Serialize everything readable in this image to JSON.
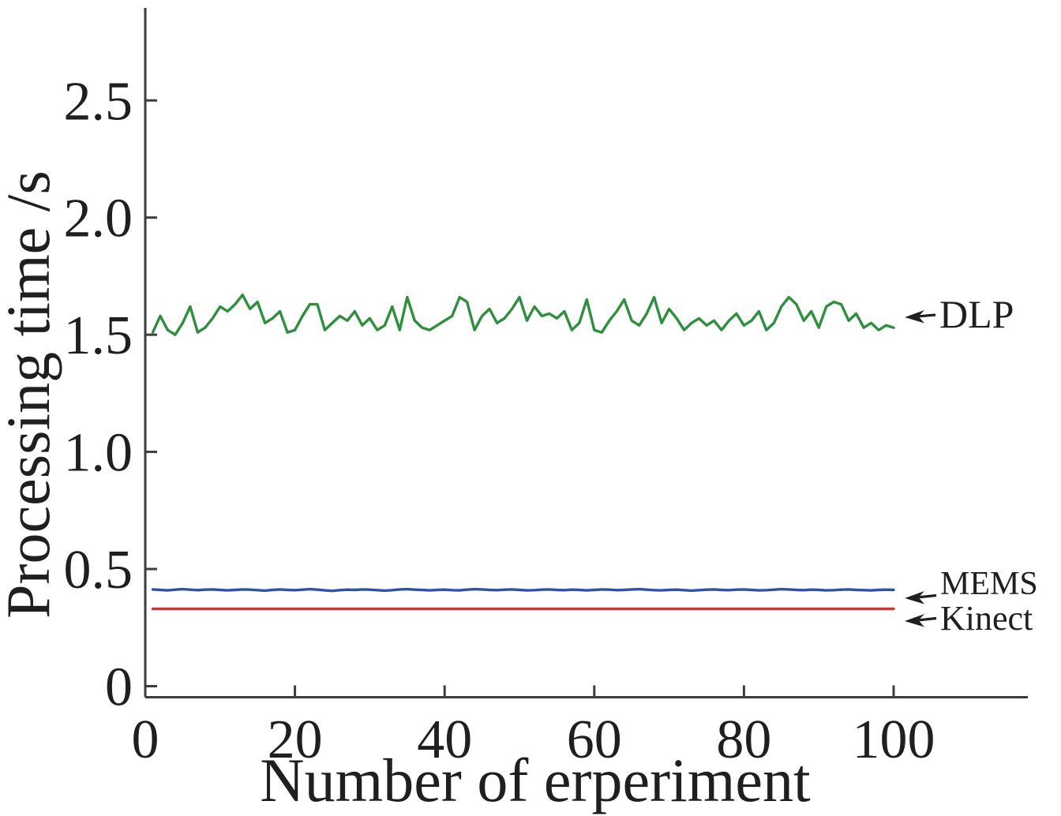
{
  "figure": {
    "background": "#ffffff",
    "text_color": "#1f1f1f",
    "axis_color": "#3d3d3d"
  },
  "chart_data": {
    "type": "line",
    "title": "",
    "xlabel": "Number of erperiment",
    "ylabel": "Processing time /s",
    "xlim": [
      0,
      118
    ],
    "ylim": [
      -0.05,
      2.9
    ],
    "grid": false,
    "legend_position": "none",
    "xticks": [
      0,
      20,
      40,
      60,
      80,
      100
    ],
    "xtick_labels": [
      "0",
      "20",
      "40",
      "60",
      "80",
      "100"
    ],
    "yticks": [
      0,
      0.5,
      1.0,
      1.5,
      2.0,
      2.5
    ],
    "ytick_labels": [
      "0",
      "0.5",
      "1.0",
      "1.5",
      "2.0",
      "2.5"
    ],
    "x_start": 1,
    "x_step": 1,
    "n_points": 100,
    "series": [
      {
        "name": "DLP",
        "color": "#2f8f3f",
        "values": [
          1.51,
          1.58,
          1.52,
          1.5,
          1.55,
          1.62,
          1.51,
          1.53,
          1.57,
          1.62,
          1.6,
          1.63,
          1.67,
          1.61,
          1.64,
          1.55,
          1.57,
          1.6,
          1.51,
          1.52,
          1.58,
          1.63,
          1.63,
          1.52,
          1.55,
          1.58,
          1.56,
          1.6,
          1.54,
          1.57,
          1.52,
          1.54,
          1.62,
          1.52,
          1.66,
          1.56,
          1.53,
          1.52,
          1.54,
          1.56,
          1.58,
          1.66,
          1.64,
          1.52,
          1.58,
          1.61,
          1.55,
          1.57,
          1.61,
          1.66,
          1.56,
          1.62,
          1.58,
          1.59,
          1.57,
          1.6,
          1.52,
          1.55,
          1.65,
          1.52,
          1.51,
          1.56,
          1.6,
          1.65,
          1.56,
          1.54,
          1.59,
          1.66,
          1.55,
          1.61,
          1.57,
          1.52,
          1.55,
          1.57,
          1.54,
          1.56,
          1.52,
          1.56,
          1.59,
          1.54,
          1.56,
          1.6,
          1.52,
          1.55,
          1.62,
          1.66,
          1.63,
          1.56,
          1.6,
          1.53,
          1.62,
          1.64,
          1.63,
          1.56,
          1.59,
          1.53,
          1.55,
          1.52,
          1.54,
          1.53
        ]
      },
      {
        "name": "MEMS",
        "color": "#2d53a8",
        "values": [
          0.413,
          0.411,
          0.409,
          0.412,
          0.414,
          0.412,
          0.41,
          0.412,
          0.413,
          0.411,
          0.409,
          0.411,
          0.413,
          0.412,
          0.41,
          0.408,
          0.411,
          0.413,
          0.411,
          0.41,
          0.412,
          0.414,
          0.412,
          0.409,
          0.407,
          0.41,
          0.412,
          0.411,
          0.413,
          0.412,
          0.41,
          0.408,
          0.41,
          0.413,
          0.414,
          0.412,
          0.411,
          0.409,
          0.411,
          0.412,
          0.41,
          0.409,
          0.412,
          0.414,
          0.413,
          0.411,
          0.41,
          0.412,
          0.413,
          0.411,
          0.409,
          0.41,
          0.412,
          0.413,
          0.411,
          0.41,
          0.412,
          0.411,
          0.409,
          0.411,
          0.413,
          0.412,
          0.41,
          0.411,
          0.413,
          0.414,
          0.412,
          0.41,
          0.409,
          0.411,
          0.412,
          0.41,
          0.408,
          0.41,
          0.412,
          0.413,
          0.411,
          0.41,
          0.412,
          0.413,
          0.411,
          0.409,
          0.41,
          0.412,
          0.414,
          0.413,
          0.411,
          0.41,
          0.412,
          0.411,
          0.409,
          0.41,
          0.412,
          0.413,
          0.411,
          0.41,
          0.409,
          0.411,
          0.412,
          0.411
        ]
      },
      {
        "name": "Kinect",
        "color": "#d03434",
        "values": [
          0.33,
          0.33,
          0.33,
          0.33,
          0.33,
          0.33,
          0.33,
          0.33,
          0.33,
          0.33,
          0.33,
          0.33,
          0.33,
          0.33,
          0.33,
          0.33,
          0.33,
          0.33,
          0.33,
          0.33,
          0.33,
          0.33,
          0.33,
          0.33,
          0.33,
          0.33,
          0.33,
          0.33,
          0.33,
          0.33,
          0.33,
          0.33,
          0.33,
          0.33,
          0.33,
          0.33,
          0.33,
          0.33,
          0.33,
          0.33,
          0.33,
          0.33,
          0.33,
          0.33,
          0.33,
          0.33,
          0.33,
          0.33,
          0.33,
          0.33,
          0.33,
          0.33,
          0.33,
          0.33,
          0.33,
          0.33,
          0.33,
          0.33,
          0.33,
          0.33,
          0.33,
          0.33,
          0.33,
          0.33,
          0.33,
          0.33,
          0.33,
          0.33,
          0.33,
          0.33,
          0.33,
          0.33,
          0.33,
          0.33,
          0.33,
          0.33,
          0.33,
          0.33,
          0.33,
          0.33,
          0.33,
          0.33,
          0.33,
          0.33,
          0.33,
          0.33,
          0.33,
          0.33,
          0.33,
          0.33,
          0.33,
          0.33,
          0.33,
          0.33,
          0.33,
          0.33,
          0.33,
          0.33,
          0.33,
          0.33
        ]
      }
    ],
    "annotations": [
      {
        "label": "DLP",
        "series": "DLP"
      },
      {
        "label": "MEMS",
        "series": "MEMS"
      },
      {
        "label": "Kinect",
        "series": "Kinect"
      }
    ]
  }
}
